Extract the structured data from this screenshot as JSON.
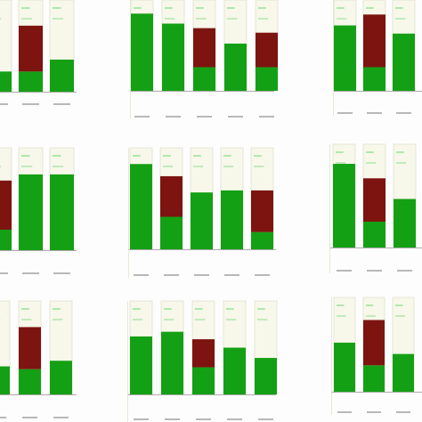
{
  "colors": {
    "green": "#14a014",
    "dark_red": "#7d1410",
    "column_bg": "#f7f7ea",
    "column_border": "#e2e2cf",
    "tick_mark": "#9de39d",
    "axis": "#909090",
    "label_mark": "#b8b8b8"
  },
  "chart_data": [
    {
      "type": "bar",
      "columns": [
        {
          "stack": [
            {
              "color": "green",
              "value": 0.22
            }
          ]
        },
        {
          "stack": [
            {
              "color": "green",
              "value": 0.22
            },
            {
              "color": "dark_red",
              "value": 0.5
            }
          ]
        },
        {
          "stack": [
            {
              "color": "green",
              "value": 0.35
            }
          ]
        }
      ]
    },
    {
      "type": "bar",
      "columns": [
        {
          "stack": [
            {
              "color": "green",
              "value": 0.85
            }
          ]
        },
        {
          "stack": [
            {
              "color": "green",
              "value": 0.74
            }
          ]
        },
        {
          "stack": [
            {
              "color": "green",
              "value": 0.26
            },
            {
              "color": "dark_red",
              "value": 0.43
            }
          ]
        },
        {
          "stack": [
            {
              "color": "green",
              "value": 0.52
            }
          ]
        },
        {
          "stack": [
            {
              "color": "green",
              "value": 0.26
            },
            {
              "color": "dark_red",
              "value": 0.38
            }
          ]
        }
      ]
    },
    {
      "type": "bar",
      "columns": [
        {
          "stack": [
            {
              "color": "green",
              "value": 0.72
            }
          ]
        },
        {
          "stack": [
            {
              "color": "green",
              "value": 0.26
            },
            {
              "color": "dark_red",
              "value": 0.58
            }
          ]
        },
        {
          "stack": [
            {
              "color": "green",
              "value": 0.63
            }
          ]
        }
      ]
    },
    {
      "type": "bar",
      "columns": [
        {
          "stack": [
            {
              "color": "green",
              "value": 0.2
            },
            {
              "color": "dark_red",
              "value": 0.48
            }
          ]
        },
        {
          "stack": [
            {
              "color": "green",
              "value": 0.74
            }
          ]
        },
        {
          "stack": [
            {
              "color": "green",
              "value": 0.74
            }
          ]
        }
      ]
    },
    {
      "type": "bar",
      "columns": [
        {
          "stack": [
            {
              "color": "green",
              "value": 0.84
            }
          ]
        },
        {
          "stack": [
            {
              "color": "green",
              "value": 0.32
            },
            {
              "color": "dark_red",
              "value": 0.4
            }
          ]
        },
        {
          "stack": [
            {
              "color": "green",
              "value": 0.56
            }
          ]
        },
        {
          "stack": [
            {
              "color": "green",
              "value": 0.58
            }
          ]
        },
        {
          "stack": [
            {
              "color": "green",
              "value": 0.17
            },
            {
              "color": "dark_red",
              "value": 0.41
            }
          ]
        }
      ]
    },
    {
      "type": "bar",
      "columns": [
        {
          "stack": [
            {
              "color": "green",
              "value": 0.81
            }
          ]
        },
        {
          "stack": [
            {
              "color": "green",
              "value": 0.25
            },
            {
              "color": "dark_red",
              "value": 0.42
            }
          ]
        },
        {
          "stack": [
            {
              "color": "green",
              "value": 0.47
            }
          ]
        }
      ]
    },
    {
      "type": "bar",
      "columns": [
        {
          "stack": [
            {
              "color": "green",
              "value": 0.3
            }
          ]
        },
        {
          "stack": [
            {
              "color": "green",
              "value": 0.27
            },
            {
              "color": "dark_red",
              "value": 0.45
            }
          ]
        },
        {
          "stack": [
            {
              "color": "green",
              "value": 0.36
            }
          ]
        }
      ]
    },
    {
      "type": "bar",
      "columns": [
        {
          "stack": [
            {
              "color": "green",
              "value": 0.62
            }
          ]
        },
        {
          "stack": [
            {
              "color": "green",
              "value": 0.67
            }
          ]
        },
        {
          "stack": [
            {
              "color": "green",
              "value": 0.29
            },
            {
              "color": "dark_red",
              "value": 0.3
            }
          ]
        },
        {
          "stack": [
            {
              "color": "green",
              "value": 0.5
            }
          ]
        },
        {
          "stack": [
            {
              "color": "green",
              "value": 0.39
            }
          ]
        }
      ]
    },
    {
      "type": "bar",
      "columns": [
        {
          "stack": [
            {
              "color": "green",
              "value": 0.52
            }
          ]
        },
        {
          "stack": [
            {
              "color": "green",
              "value": 0.28
            },
            {
              "color": "dark_red",
              "value": 0.48
            }
          ]
        },
        {
          "stack": [
            {
              "color": "green",
              "value": 0.4
            }
          ]
        }
      ]
    }
  ]
}
